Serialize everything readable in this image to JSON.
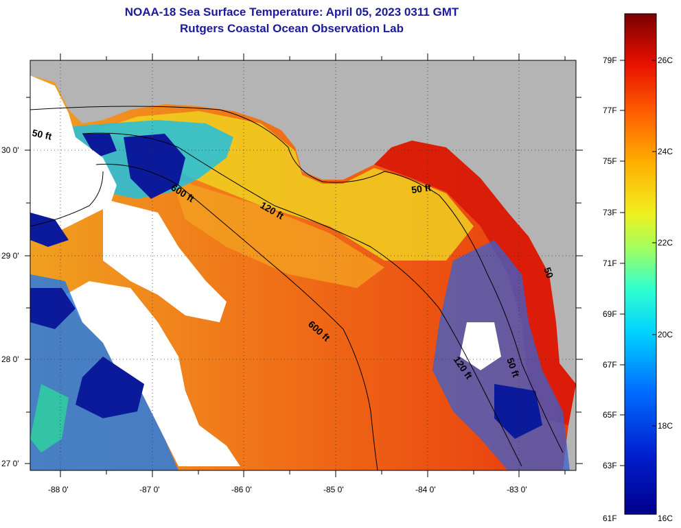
{
  "title": {
    "line1": "NOAA-18 Sea Surface Temperature:  April 05, 2023 0311 GMT",
    "line2": "Rutgers Coastal Ocean Observation Lab"
  },
  "map": {
    "lat_labels": [
      "30 0'",
      "29 0'",
      "28 0'",
      "27 0'"
    ],
    "lon_labels": [
      "-88 0'",
      "-87 0'",
      "-86 0'",
      "-85 0'",
      "-84 0'",
      "-83 0'"
    ],
    "contour_labels": [
      "50 ft",
      "600 ft",
      "120 ft",
      "50 ft",
      "600 ft",
      "120 ft",
      "50 ft",
      "50"
    ]
  },
  "colorbar": {
    "fahrenheit_labels": [
      "79F",
      "77F",
      "75F",
      "73F",
      "71F",
      "69F",
      "67F",
      "65F",
      "63F",
      "61F"
    ],
    "celsius_labels": [
      "26C",
      "24C",
      "22C",
      "20C",
      "18C",
      "16C"
    ]
  },
  "colors": {
    "land": "#b4b4b4",
    "title": "#1a1a9c",
    "warm": "#e8380c",
    "cold": "#0a1a9a"
  }
}
